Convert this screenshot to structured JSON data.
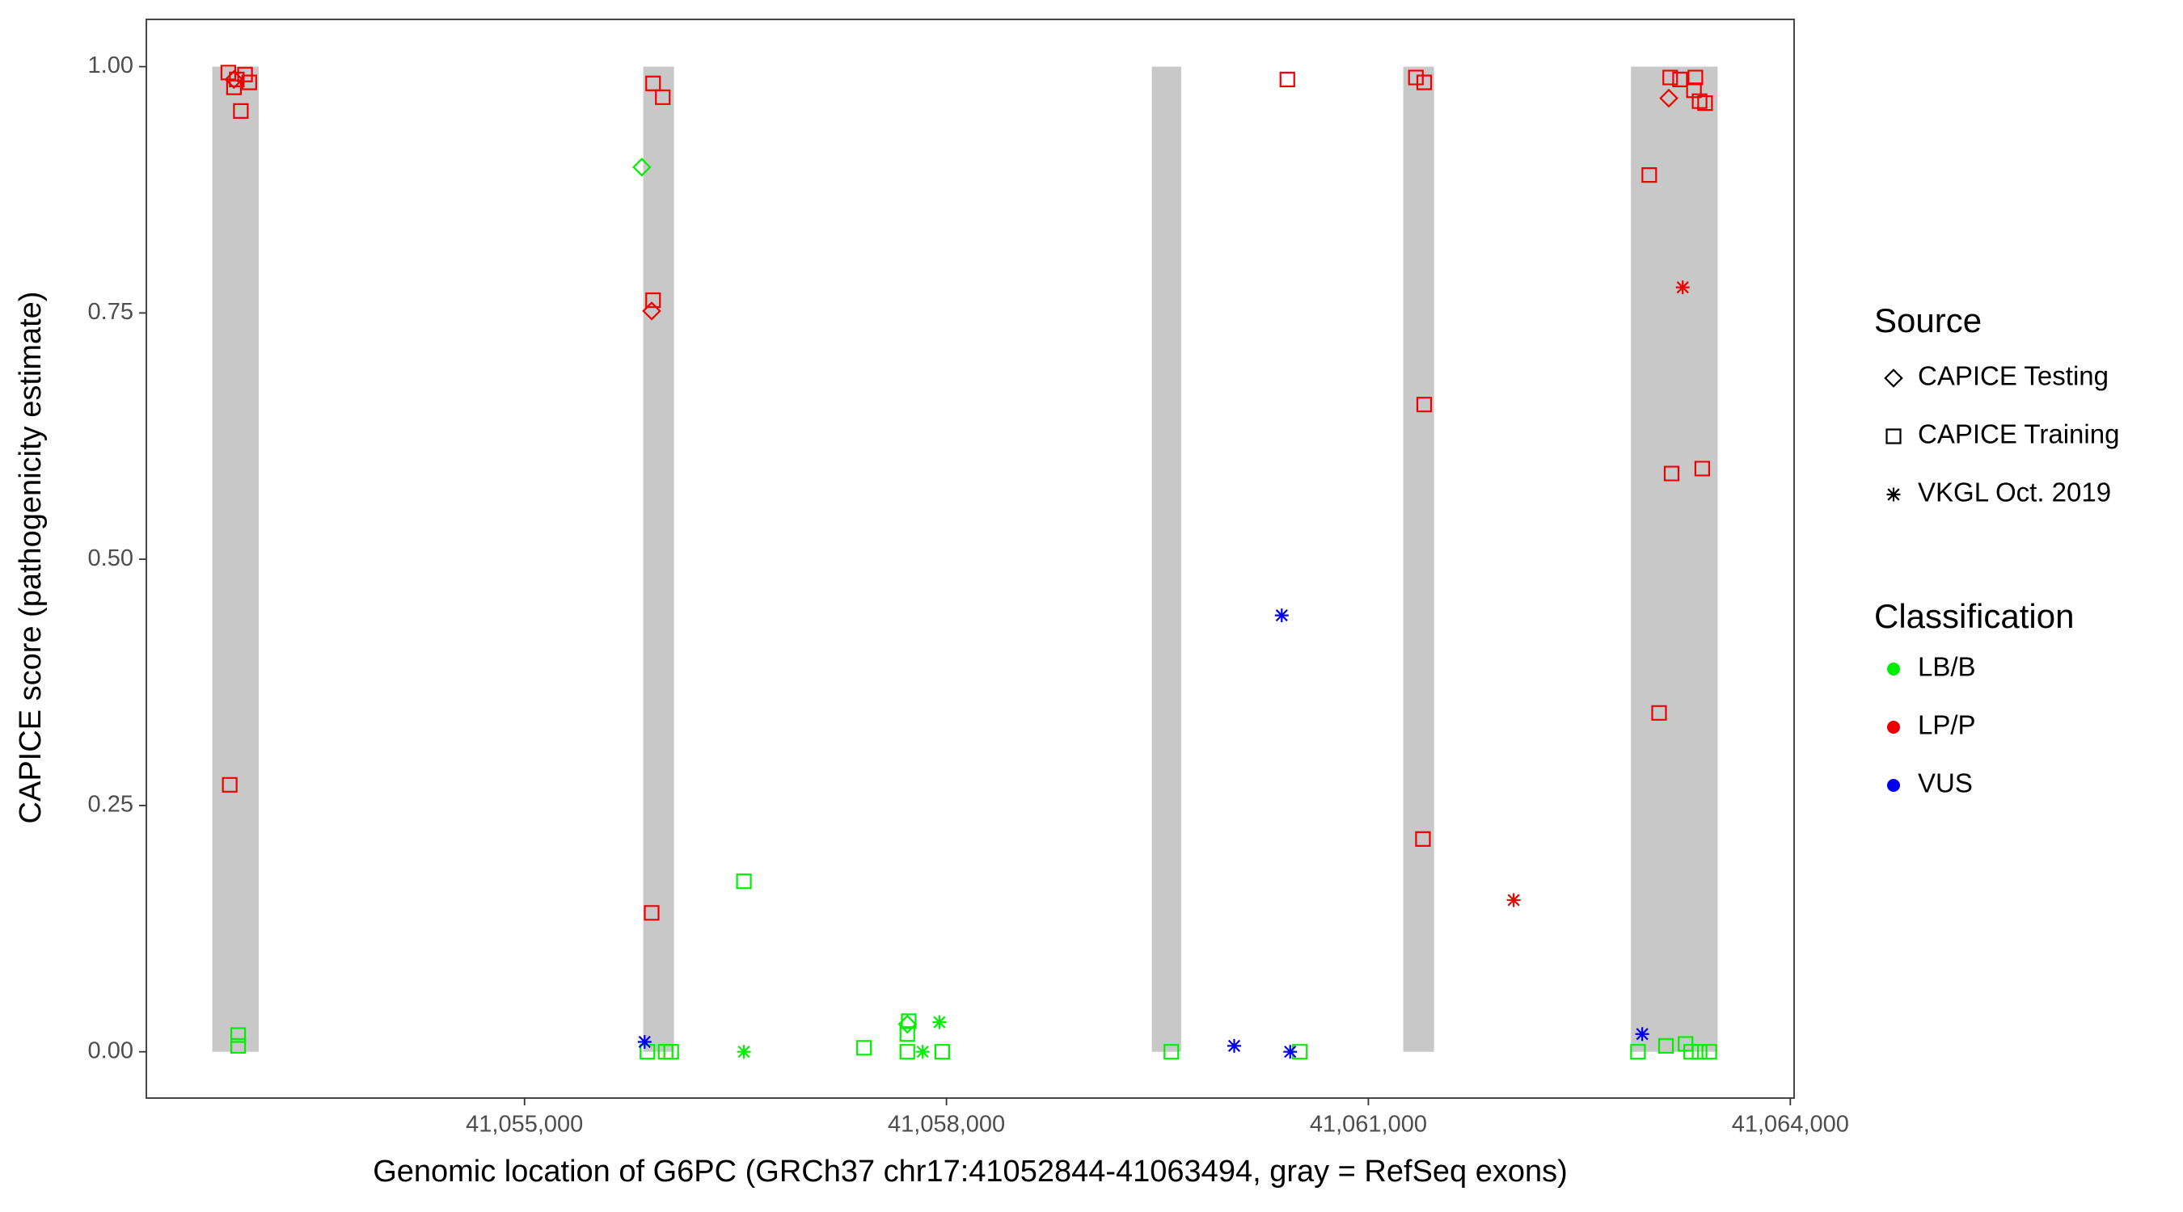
{
  "chart_data": {
    "type": "scatter",
    "x_label": "Genomic location of G6PC (GRCh37 chr17:41052844-41063494, gray = RefSeq exons)",
    "y_label": "CAPICE score (pathogenicity estimate)",
    "xlim": [
      41052311,
      41064027
    ],
    "ylim": [
      -0.047,
      1.048
    ],
    "xticks": [
      {
        "value": 41055000,
        "label": "41,055,000"
      },
      {
        "value": 41058000,
        "label": "41,058,000"
      },
      {
        "value": 41061000,
        "label": "41,061,000"
      },
      {
        "value": 41064000,
        "label": "41,064,000"
      }
    ],
    "yticks": [
      {
        "value": 0,
        "label": "0.00"
      },
      {
        "value": 0.25,
        "label": "0.25"
      },
      {
        "value": 0.5,
        "label": "0.50"
      },
      {
        "value": 0.75,
        "label": "0.75"
      },
      {
        "value": 1,
        "label": "1.00"
      }
    ],
    "grid": false,
    "exons": {
      "color": "#c8c8c8",
      "start": [
        41052780,
        41055844,
        41059460,
        41061248,
        41062867
      ],
      "end": [
        41053110,
        41056063,
        41059669,
        41061467,
        41063483
      ],
      "ylim": [
        0,
        1
      ]
    },
    "legend_source": {
      "title": "Source",
      "items": [
        {
          "label": "CAPICE Testing",
          "shape": "diamond"
        },
        {
          "label": "CAPICE Training",
          "shape": "square"
        },
        {
          "label": "VKGL Oct. 2019",
          "shape": "asterisk"
        }
      ]
    },
    "legend_classification": {
      "title": "Classification",
      "items": [
        {
          "label": "LB/B",
          "color": "#00ee00"
        },
        {
          "label": "LP/P",
          "color": "#ee0000"
        },
        {
          "label": "VUS",
          "color": "#0000ee"
        }
      ]
    },
    "series": [
      {
        "source": 1,
        "classification": 1,
        "x": [
          41052894,
          41052954,
          41053013,
          41053043,
          41052934,
          41052983,
          41052904,
          41055914,
          41055983,
          41055914,
          41055904,
          41060424,
          41061338,
          41061397,
          41061397,
          41061388,
          41063146,
          41063216,
          41063325,
          41063315,
          41063355,
          41063394,
          41062997,
          41063156,
          41063374,
          41063067
        ],
        "y": [
          0.994,
          0.987,
          0.992,
          0.984,
          0.979,
          0.955,
          0.271,
          0.983,
          0.969,
          0.763,
          0.141,
          0.987,
          0.989,
          0.984,
          0.657,
          0.216,
          0.989,
          0.987,
          0.989,
          0.976,
          0.965,
          0.963,
          0.89,
          0.587,
          0.592,
          0.344
        ]
      },
      {
        "source": 0,
        "classification": 1,
        "x": [
          41052934,
          41055904,
          41063136
        ],
        "y": [
          0.987,
          0.752,
          0.968
        ]
      },
      {
        "source": 2,
        "classification": 1,
        "x": [
          41063235,
          41062033
        ],
        "y": [
          0.776,
          0.154
        ]
      },
      {
        "source": 0,
        "classification": 0,
        "x": [
          41055834,
          41057722
        ],
        "y": [
          0.898,
          0.028
        ]
      },
      {
        "source": 1,
        "classification": 0,
        "x": [
          41052964,
          41052964,
          41055874,
          41056003,
          41056043,
          41056560,
          41057414,
          41057722,
          41057732,
          41057722,
          41057970,
          41059599,
          41060513,
          41062917,
          41063116,
          41063255,
          41063295,
          41063355,
          41063424
        ],
        "y": [
          0.017,
          0.006,
          0,
          0,
          0,
          0.173,
          0.004,
          0.018,
          0.031,
          0,
          0,
          0,
          0,
          0,
          0.006,
          0.008,
          0,
          0,
          0
        ]
      },
      {
        "source": 2,
        "classification": 0,
        "x": [
          41056560,
          41057950,
          41057831
        ],
        "y": [
          0,
          0.03,
          0
        ]
      },
      {
        "source": 2,
        "classification": 2,
        "x": [
          41055854,
          41060384,
          41060046,
          41060444,
          41062947
        ],
        "y": [
          0.01,
          0.443,
          0.006,
          0,
          0.018
        ]
      }
    ]
  }
}
